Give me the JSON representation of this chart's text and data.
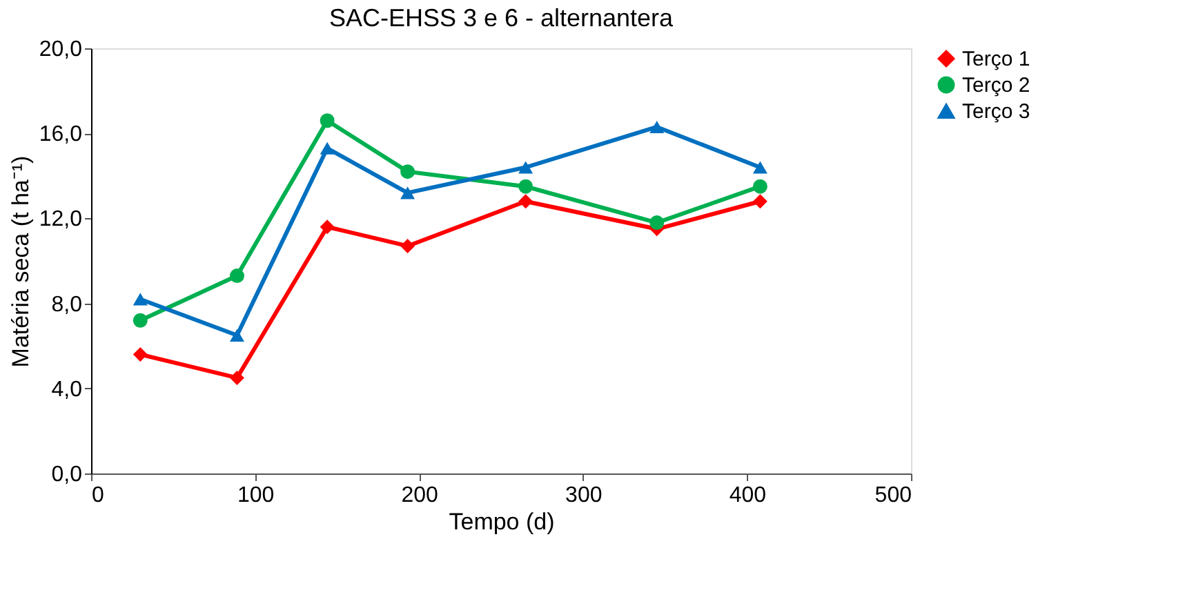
{
  "chart_data": {
    "type": "line",
    "title": "SAC-EHSS 3 e 6 - alternantera",
    "xlabel": "Tempo (d)",
    "ylabel": "Matéria seca (t ha⁻¹)",
    "x": [
      30,
      89,
      144,
      193,
      265,
      345,
      408
    ],
    "series": [
      {
        "name": "Terço 1",
        "color": "#ff0000",
        "marker": "diamond",
        "values": [
          5.6,
          4.5,
          11.6,
          10.7,
          12.8,
          11.5,
          12.8
        ]
      },
      {
        "name": "Terço 2",
        "color": "#00b050",
        "marker": "circle",
        "values": [
          7.2,
          9.3,
          16.6,
          14.2,
          13.5,
          11.8,
          13.5
        ]
      },
      {
        "name": "Terço 3",
        "color": "#0070c0",
        "marker": "triangle",
        "values": [
          8.2,
          6.5,
          15.3,
          13.2,
          14.4,
          16.3,
          14.4
        ]
      }
    ],
    "xlim": [
      0,
      500
    ],
    "xticks": [
      0,
      100,
      200,
      300,
      400,
      500
    ],
    "ylim": [
      0,
      20
    ],
    "yticks": [
      {
        "value": 0,
        "label": "0,0"
      },
      {
        "value": 4,
        "label": "4,0"
      },
      {
        "value": 8,
        "label": "8,0"
      },
      {
        "value": 12,
        "label": "12,0"
      },
      {
        "value": 16,
        "label": "16,0"
      },
      {
        "value": 20,
        "label": "20,0"
      }
    ],
    "grid": false,
    "legend": "right",
    "line_style": "solid"
  }
}
